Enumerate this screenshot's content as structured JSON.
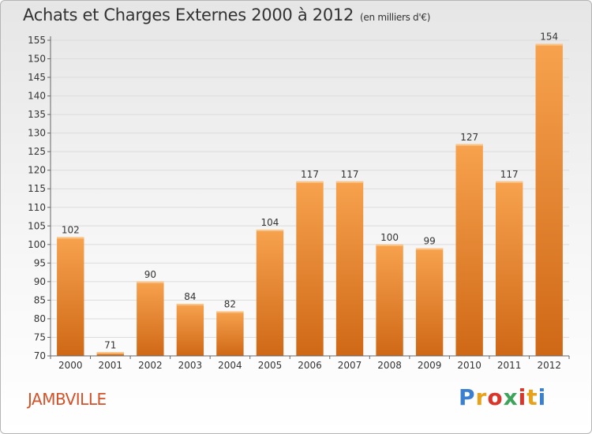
{
  "title": "Achats et Charges Externes 2000 à 2012",
  "unit": "(en milliers d'€)",
  "commune": "JAMBVILLE",
  "logo": {
    "letters": [
      "P",
      "r",
      "o",
      "x",
      "i",
      "t",
      "i"
    ],
    "colors": [
      "#3a7fd0",
      "#e7a21a",
      "#d9352a",
      "#3ea35b",
      "#d9352a",
      "#e7a21a",
      "#3a7fd0"
    ]
  },
  "colors": {
    "bar_top": "#f7a24e",
    "bar_bottom": "#cf6816"
  },
  "chart_data": {
    "type": "bar",
    "categories": [
      "2000",
      "2001",
      "2002",
      "2003",
      "2004",
      "2005",
      "2006",
      "2007",
      "2008",
      "2009",
      "2010",
      "2011",
      "2012"
    ],
    "values": [
      102,
      71,
      90,
      84,
      82,
      104,
      117,
      117,
      100,
      99,
      127,
      117,
      154
    ],
    "title": "Achats et Charges Externes 2000 à 2012",
    "xlabel": "",
    "ylabel": "",
    "ylim": [
      70,
      155
    ],
    "yticks": [
      70,
      75,
      80,
      85,
      90,
      95,
      100,
      105,
      110,
      115,
      120,
      125,
      130,
      135,
      140,
      145,
      150,
      155
    ],
    "grid": true,
    "data_labels": [
      "102",
      "71",
      "90",
      "84",
      "82",
      "104",
      "117",
      "117",
      "100",
      "99",
      "127",
      "117",
      "154"
    ]
  }
}
